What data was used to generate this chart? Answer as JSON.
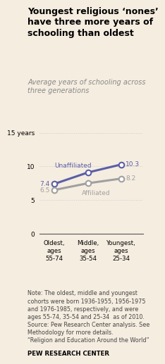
{
  "title": "Youngest religious ‘nones’\nhave three more years of\nschooling than oldest",
  "subtitle": "Average years of schooling across\nthree generations",
  "categories": [
    "Oldest,\nages\n55-74",
    "Middle,\nages\n35-54",
    "Youngest,\nages\n25-34"
  ],
  "unaffiliated": [
    7.4,
    9.1,
    10.3
  ],
  "affiliated": [
    6.5,
    7.5,
    8.2
  ],
  "unaffiliated_label": "Unaffiliated",
  "affiliated_label": "Affiliated",
  "unaffiliated_color": "#5b5ea6",
  "affiliated_color": "#a0a0a0",
  "ylim": [
    0,
    16
  ],
  "yticks": [
    0,
    5,
    10,
    15
  ],
  "ytick_labels": [
    "0",
    "5",
    "10",
    "15 years"
  ],
  "note_text": "Note: The oldest, middle and youngest\ncohorts were born 1936-1955, 1956-1975\nand 1976-1985, respectively, and were\nages 55-74, 35-54 and 25-34  as of 2010.\nSource: Pew Research Center analysis. See\nMethodology for more details.\n“Religion and Education Around the World”",
  "source_label": "PEW RESEARCH CENTER",
  "bg_color": "#f5ede0",
  "grid_color": "#cccccc",
  "title_color": "#000000",
  "subtitle_color": "#888888"
}
